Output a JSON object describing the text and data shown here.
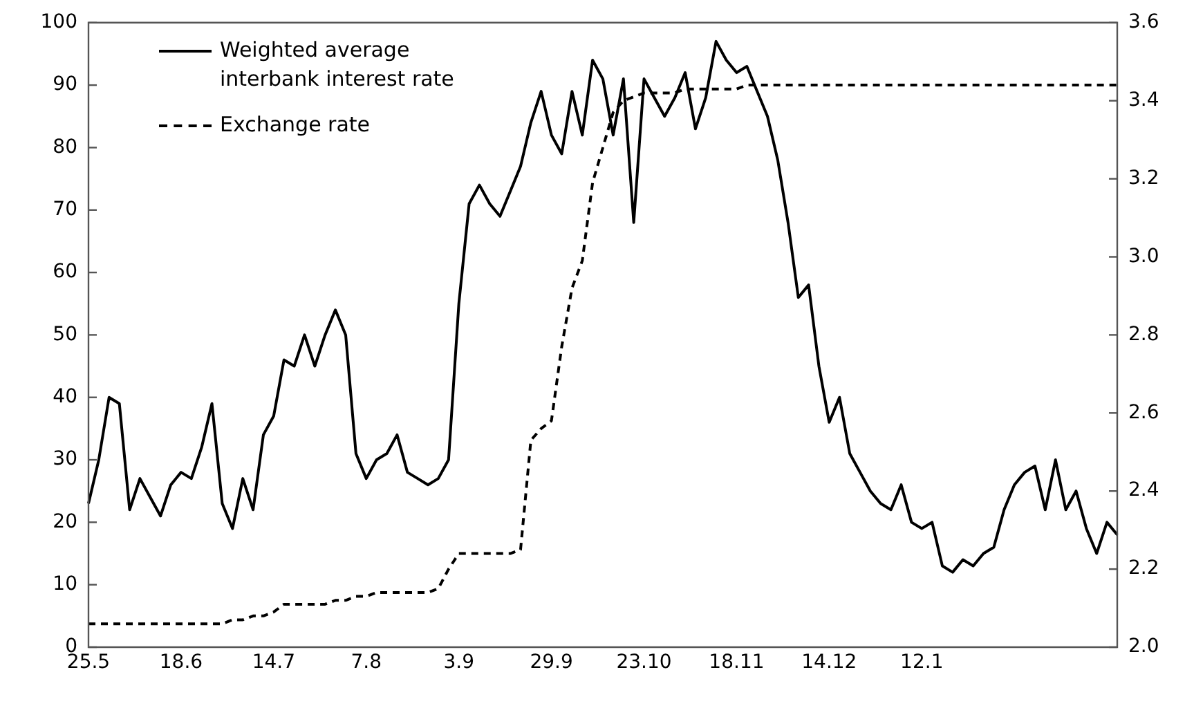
{
  "chart_data": {
    "type": "line",
    "categories": [
      "25.5",
      null,
      null,
      null,
      null,
      null,
      null,
      null,
      null,
      "18.6",
      null,
      null,
      null,
      null,
      null,
      null,
      null,
      null,
      "14.7",
      null,
      null,
      null,
      null,
      null,
      null,
      null,
      null,
      "7.8",
      null,
      null,
      null,
      null,
      null,
      null,
      null,
      null,
      "3.9",
      null,
      null,
      null,
      null,
      null,
      null,
      null,
      null,
      "29.9",
      null,
      null,
      null,
      null,
      null,
      null,
      null,
      null,
      "23.10",
      null,
      null,
      null,
      null,
      null,
      null,
      null,
      null,
      "18.11",
      null,
      null,
      null,
      null,
      null,
      null,
      null,
      null,
      "14.12",
      null,
      null,
      null,
      null,
      null,
      null,
      null,
      null,
      "12.1",
      null,
      null,
      null,
      null,
      null,
      null,
      null,
      null,
      null,
      null,
      null,
      null,
      null,
      null,
      null,
      null,
      null,
      null,
      null
    ],
    "ylim": [
      0,
      100
    ],
    "yticks": [
      0,
      10,
      20,
      30,
      40,
      50,
      60,
      70,
      80,
      90,
      100
    ],
    "y2lim": [
      2.0,
      3.6
    ],
    "y2ticks": [
      {
        "value": 2.0,
        "label": "2.0"
      },
      2.2,
      2.4,
      2.6,
      2.8,
      {
        "value": 3.0,
        "label": "3.0"
      },
      3.2,
      3.4,
      3.6
    ],
    "legend": "top left",
    "grid": false,
    "series": [
      {
        "name": "Weighted average interbank interest rate",
        "color": "#000000",
        "line_style": "solid",
        "values": [
          23,
          30,
          40,
          39,
          22,
          27,
          24,
          21,
          26,
          28,
          27,
          32,
          39,
          23,
          19,
          27,
          22,
          34,
          37,
          46,
          45,
          50,
          45,
          50,
          54,
          50,
          31,
          27,
          30,
          31,
          34,
          28,
          27,
          26,
          27,
          30,
          55,
          71,
          74,
          71,
          69,
          73,
          77,
          84,
          89,
          82,
          79,
          89,
          82,
          94,
          91,
          82,
          91,
          68,
          91,
          88,
          85,
          88,
          92,
          83,
          88,
          97,
          94,
          92,
          93,
          89,
          85,
          78,
          68,
          56,
          58,
          45,
          36,
          40,
          31,
          28,
          25,
          23,
          22,
          26,
          20,
          19,
          20,
          13,
          12,
          14,
          13,
          15,
          16,
          22,
          26,
          28,
          29,
          22,
          30,
          22,
          25,
          19,
          15,
          20,
          18
        ]
      },
      {
        "name": "Exchange rate",
        "color": "#000000",
        "line_style": "dashed",
        "axis": "y2",
        "values": [
          2.06,
          2.06,
          2.06,
          2.06,
          2.06,
          2.06,
          2.06,
          2.06,
          2.06,
          2.06,
          2.06,
          2.06,
          2.06,
          2.06,
          2.07,
          2.07,
          2.08,
          2.08,
          2.09,
          2.11,
          2.11,
          2.11,
          2.11,
          2.11,
          2.12,
          2.12,
          2.13,
          2.13,
          2.14,
          2.14,
          2.14,
          2.14,
          2.14,
          2.14,
          2.15,
          2.2,
          2.24,
          2.24,
          2.24,
          2.24,
          2.24,
          2.24,
          2.25,
          2.53,
          2.56,
          2.58,
          2.77,
          2.92,
          2.99,
          3.19,
          3.28,
          3.37,
          3.4,
          3.41,
          3.42,
          3.42,
          3.42,
          3.42,
          3.43,
          3.43,
          3.43,
          3.43,
          3.43,
          3.43,
          3.44,
          3.44,
          3.44,
          3.44,
          3.44,
          3.44,
          3.44,
          3.44,
          3.44,
          3.44,
          3.44,
          3.44,
          3.44,
          3.44,
          3.44,
          3.44,
          3.44,
          3.44,
          3.44,
          3.44,
          3.44,
          3.44,
          3.44,
          3.44,
          3.44,
          3.44,
          3.44,
          3.44,
          3.44,
          3.44,
          3.44,
          3.44,
          3.44,
          3.44,
          3.44,
          3.44,
          3.44
        ]
      }
    ]
  }
}
